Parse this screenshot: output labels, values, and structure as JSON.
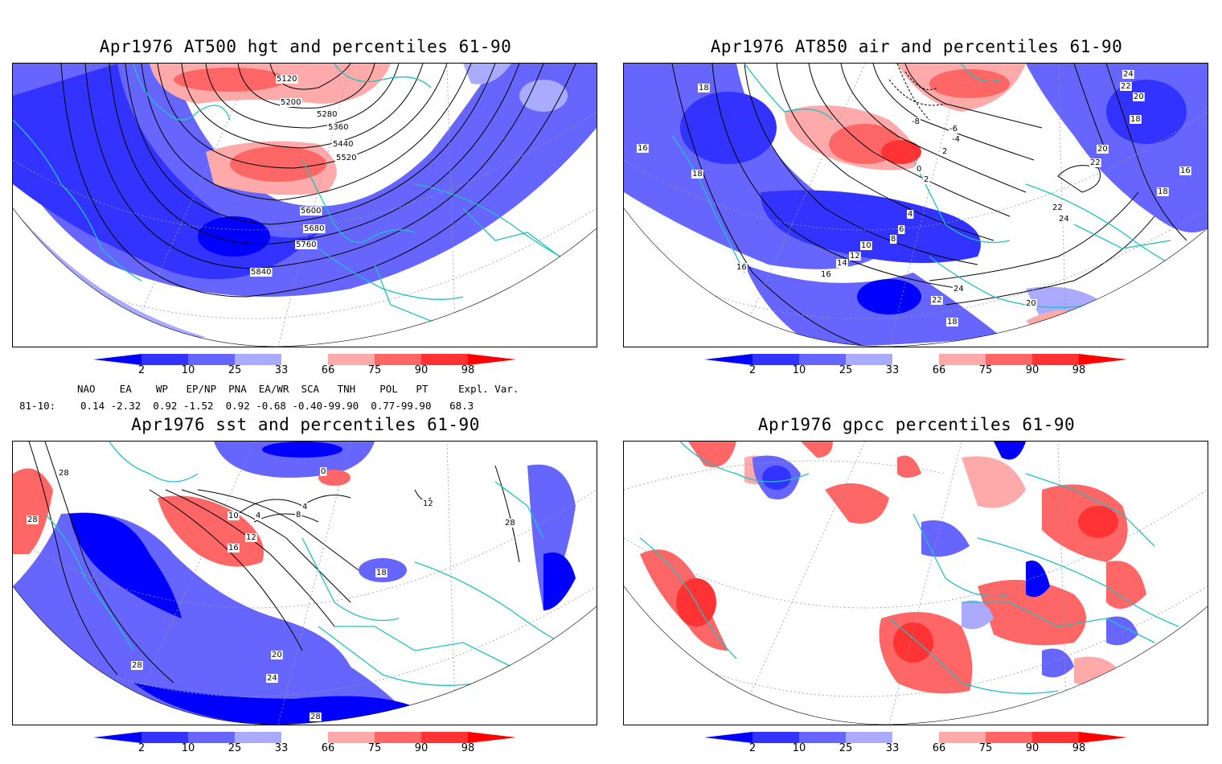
{
  "panels": [
    {
      "id": "hgt500",
      "title": "Apr1976 AT500 hgt and percentiles 61-90",
      "contour_labels": [
        "5120",
        "5200",
        "5280",
        "5360",
        "5440",
        "5520",
        "5600",
        "5680",
        "5760",
        "5840"
      ]
    },
    {
      "id": "air850",
      "title": "Apr1976 AT850 air and percentiles 61-90",
      "contour_labels": [
        "18",
        "16",
        "18",
        "24",
        "22",
        "20",
        "18",
        "20",
        "22",
        "16",
        "18",
        "-8",
        "-6",
        "-4",
        "2",
        "0",
        "2",
        "4",
        "6",
        "8",
        "10",
        "12",
        "14",
        "16",
        "22",
        "24",
        "22",
        "24",
        "20",
        "16",
        "18"
      ]
    },
    {
      "id": "sst",
      "title": "Apr1976 sst and percentiles 61-90",
      "contour_labels": [
        "28",
        "28",
        "0",
        "4",
        "8",
        "10",
        "4",
        "12",
        "16",
        "12",
        "28",
        "18",
        "20",
        "24",
        "28",
        "28"
      ]
    },
    {
      "id": "gpcc",
      "title": "Apr1976 gpcc percentiles 61-90",
      "contour_labels": []
    }
  ],
  "colorbar": {
    "labels": [
      "2",
      "10",
      "25",
      "33",
      "66",
      "75",
      "90",
      "98"
    ],
    "colors": {
      "c_lt2": "#0000ff",
      "c_2_10": "#3333ff",
      "c_10_25": "#6666ff",
      "c_25_33": "#aaaaff",
      "c_mid": "#ffffff",
      "c_66_75": "#ffaaaa",
      "c_75_90": "#ff6666",
      "c_90_98": "#ff3333",
      "c_gt98": "#ff0000"
    }
  },
  "teleconnections": {
    "header": "NAO    EA    WP   EP/NP  PNA  EA/WR  SCA   TNH    POL   PT     Expl. Var.",
    "row_label": "81-10:",
    "row_values": "0.14 -2.32  0.92 -1.52  0.92 -0.68 -0.40-99.90  0.77-99.90   68.3"
  },
  "colors": {
    "coast": "#20c0c0",
    "grid": "#999999",
    "contour": "#000000"
  }
}
